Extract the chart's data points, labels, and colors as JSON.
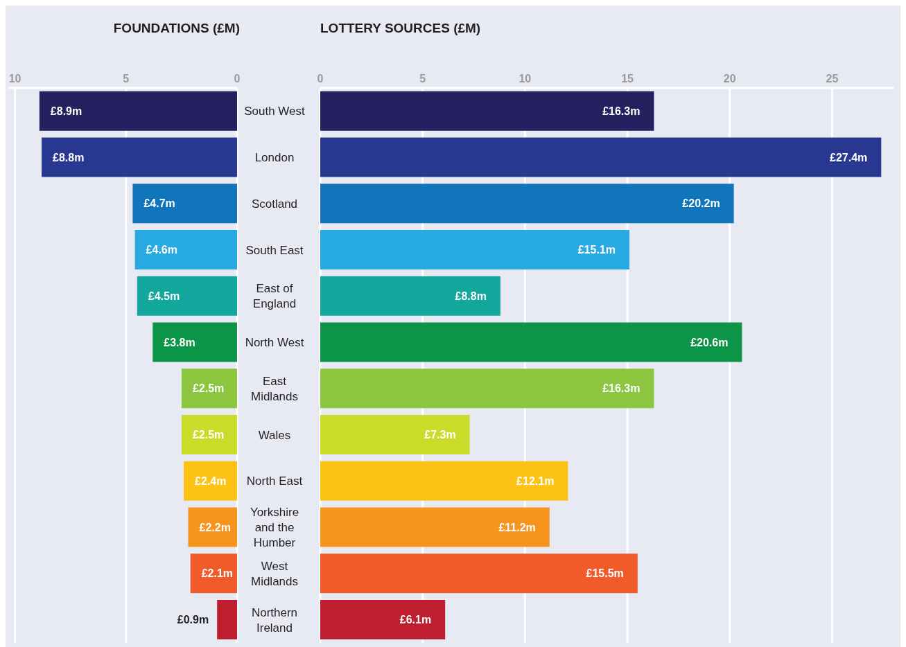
{
  "chart_data": [
    {
      "type": "bar",
      "orientation": "horizontal",
      "title": "FOUNDATIONS (£M)",
      "values": [
        8.9,
        8.8,
        4.7,
        4.6,
        4.5,
        3.8,
        2.5,
        2.5,
        2.4,
        2.2,
        2.1,
        0.9
      ],
      "value_labels": [
        "£8.9m",
        "£8.8m",
        "£4.7m",
        "£4.6m",
        "£4.5m",
        "£3.8m",
        "£2.5m",
        "£2.5m",
        "£2.4m",
        "£2.2m",
        "£2.1m",
        "£0.9m"
      ],
      "colors": [
        "#252060",
        "#283891",
        "#1175bb",
        "#27a9e1",
        "#13a89e",
        "#0d9547",
        "#8cc63f",
        "#cbdb2a",
        "#fcc216",
        "#f7941d",
        "#f15a29",
        "#be1e2d"
      ],
      "xlim": [
        10.3,
        0
      ],
      "xticks": [
        10,
        5,
        0
      ],
      "grid": "x",
      "tick_labels": "x"
    },
    {
      "type": "bar",
      "orientation": "horizontal",
      "title": "LOTTERY SOURCES (£M)",
      "categories": [
        "South West",
        "London",
        "Scotland",
        "South East",
        "East of England",
        "North West",
        "East Midlands",
        "Wales",
        "North East",
        "Yorkshire and the Humber",
        "West Midlands",
        "Northern Ireland"
      ],
      "values": [
        16.3,
        27.4,
        20.2,
        15.1,
        8.8,
        20.6,
        16.3,
        7.3,
        12.1,
        11.2,
        15.5,
        6.1
      ],
      "value_labels": [
        "£16.3m",
        "£27.4m",
        "£20.2m",
        "£15.1m",
        "£8.8m",
        "£20.6m",
        "£16.3m",
        "£7.3m",
        "£12.1m",
        "£11.2m",
        "£15.5m",
        "£6.1m"
      ],
      "colors": [
        "#252060",
        "#283891",
        "#1175bb",
        "#27a9e1",
        "#13a89e",
        "#0d9547",
        "#8cc63f",
        "#cbdb2a",
        "#fcc216",
        "#f7941d",
        "#f15a29",
        "#be1e2d"
      ],
      "xlim": [
        0,
        28
      ],
      "xticks": [
        0,
        5,
        10,
        15,
        20,
        25
      ],
      "grid": "x"
    }
  ]
}
